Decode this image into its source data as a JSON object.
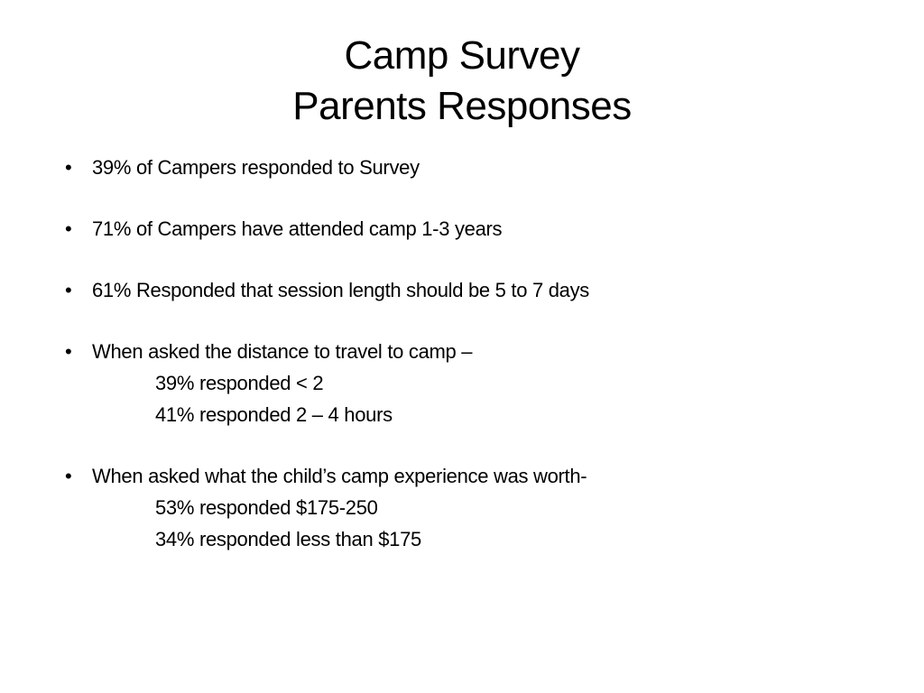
{
  "slide": {
    "title_line1": "Camp Survey",
    "title_line2": "Parents Responses",
    "bullet_symbol": "•",
    "bullets": [
      {
        "text": "39% of Campers responded to Survey"
      },
      {
        "text": "71% of Campers have attended camp 1-3 years"
      },
      {
        "text": "61%  Responded that session length should be 5 to 7 days"
      },
      {
        "text": "When asked the distance to travel to camp –",
        "sub": [
          "39%  responded  < 2",
          "41% responded 2 – 4 hours"
        ]
      },
      {
        "text": "When asked what the child’s camp experience was worth-",
        "sub": [
          "53% responded $175-250",
          "34% responded less than $175"
        ]
      }
    ]
  }
}
